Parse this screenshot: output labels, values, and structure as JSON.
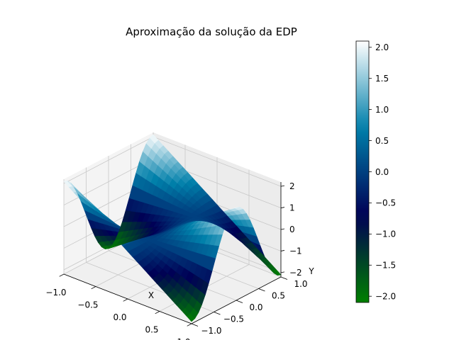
{
  "chart_data": {
    "type": "surface",
    "title": "Aproximação da solução da EDP",
    "xlabel": "X",
    "ylabel": "Y",
    "zlabel": "",
    "xlim": [
      -1.0,
      1.0
    ],
    "ylim": [
      -1.0,
      1.0
    ],
    "zlim": [
      -2.2,
      2.2
    ],
    "x_ticks": [
      "−1.0",
      "−0.5",
      "0.0",
      "0.5",
      "1.0"
    ],
    "y_ticks": [
      "−1.0",
      "−0.5",
      "0.0",
      "0.5",
      "1.0"
    ],
    "z_ticks": [
      "−2",
      "−1",
      "0",
      "1",
      "2"
    ],
    "colormap": "ocean",
    "colorbar": {
      "min": -2.1,
      "max": 2.1,
      "ticks": [
        "−2.0",
        "−1.5",
        "−1.0",
        "−0.5",
        "0.0",
        "0.5",
        "1.0",
        "1.5",
        "2.0"
      ],
      "tick_values": [
        -2.0,
        -1.5,
        -1.0,
        -0.5,
        0.0,
        0.5,
        1.0,
        1.5,
        2.0
      ]
    },
    "surface_formula": "z = 2.1·x·cos(π·y)",
    "surface_samples": [
      {
        "x": -1.0,
        "y": -1.0,
        "z": 2.1
      },
      {
        "x": -1.0,
        "y": 0.0,
        "z": -2.1
      },
      {
        "x": -1.0,
        "y": 1.0,
        "z": 2.1
      },
      {
        "x": 0.0,
        "y": -1.0,
        "z": 0.0
      },
      {
        "x": 0.0,
        "y": 0.0,
        "z": 0.0
      },
      {
        "x": 0.0,
        "y": 1.0,
        "z": 0.0
      },
      {
        "x": 1.0,
        "y": -1.0,
        "z": -2.1
      },
      {
        "x": 1.0,
        "y": 0.0,
        "z": 2.1
      },
      {
        "x": 1.0,
        "y": 1.0,
        "z": -2.1
      }
    ],
    "grid": true,
    "legend": "none"
  }
}
